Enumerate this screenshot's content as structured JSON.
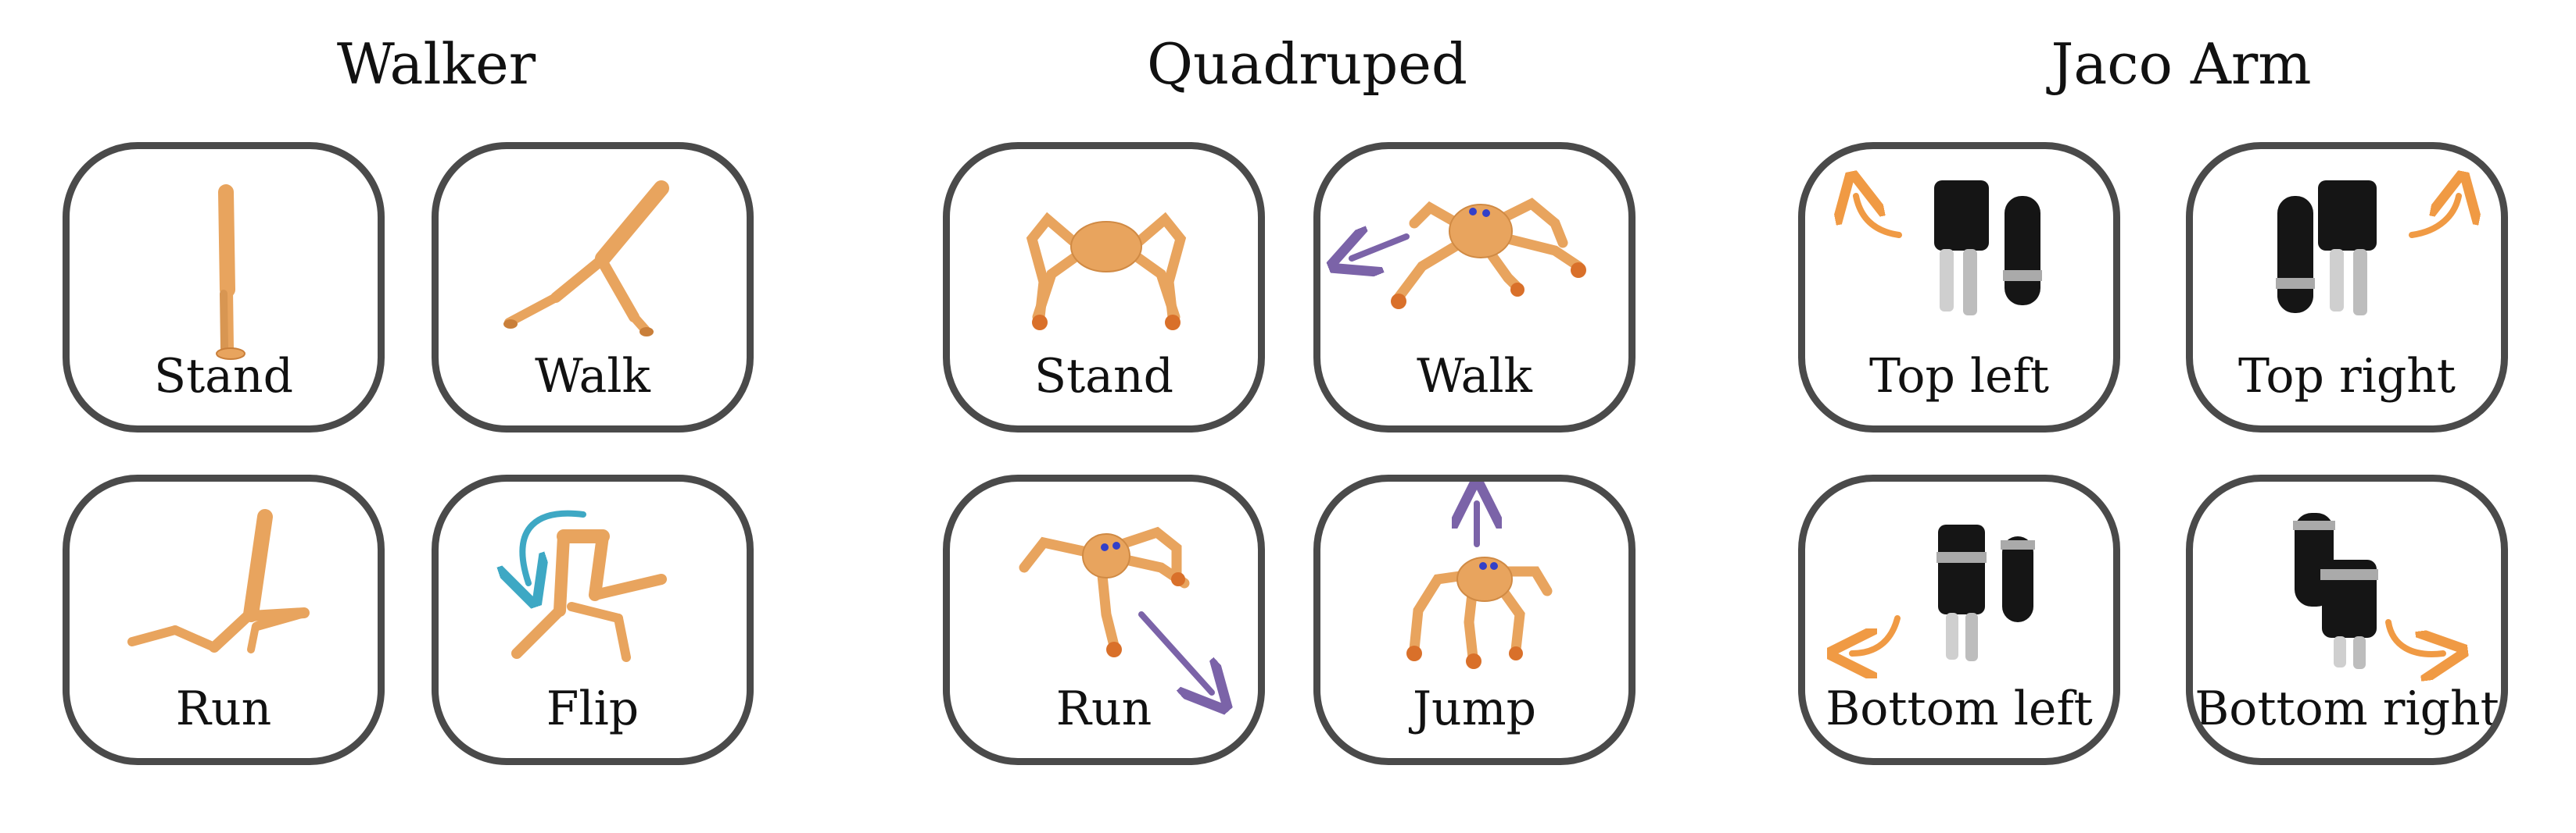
{
  "groups": [
    {
      "title": "Walker",
      "tasks": [
        "Stand",
        "Walk",
        "Run",
        "Flip"
      ]
    },
    {
      "title": "Quadruped",
      "tasks": [
        "Stand",
        "Walk",
        "Run",
        "Jump"
      ]
    },
    {
      "title": "Jaco Arm",
      "tasks": [
        "Top left",
        "Top right",
        "Bottom left",
        "Bottom right"
      ]
    }
  ],
  "colors": {
    "border": "#4a4a4a",
    "body": "#e8a45e",
    "body_dark": "#c97f3a",
    "foot": "#d9702a",
    "eye": "#3340c8",
    "arrow_purple": "#7b63a8",
    "arrow_teal": "#3ea8c4",
    "arrow_orange": "#f09a44",
    "arm_black": "#151515",
    "arm_grey": "#bdbdbd"
  },
  "icons": {
    "walker": "walker-robot-icon",
    "quadruped": "quadruped-robot-icon",
    "jaco": "jaco-arm-icon",
    "direction": "direction-arrow-icon"
  }
}
